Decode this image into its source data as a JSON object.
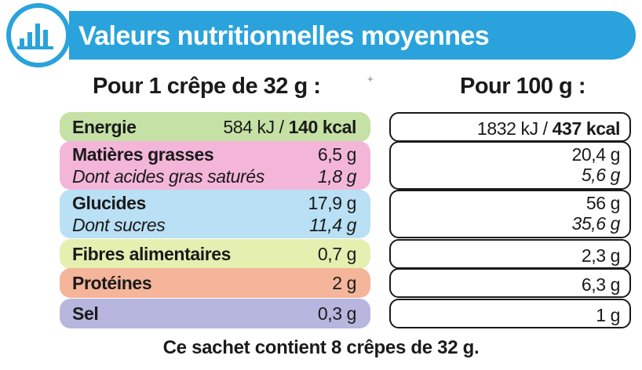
{
  "header": {
    "title": "Valeurs nutritionnelles moyennes",
    "icon": "bar-chart-icon",
    "color": "#2aa3dc"
  },
  "columns": {
    "per_crepe": "Pour 1 crêpe de 32 g :",
    "per_100g": "Pour 100 g :"
  },
  "rows": [
    {
      "label": "Energie",
      "per_crepe_kj": "584 kJ / ",
      "per_crepe_kcal": "140 kcal",
      "per_100g_kj": "1832 kJ / ",
      "per_100g_kcal": "437 kcal",
      "color": "#c5e1a5"
    },
    {
      "label": "Matières grasses",
      "per_crepe": "6,5 g",
      "per_100g": "20,4 g",
      "sub_label": "Dont acides gras saturés",
      "sub_per_crepe": "1,8 g",
      "sub_per_100g": "5,6 g",
      "color": "#f3b6d9"
    },
    {
      "label": "Glucides",
      "per_crepe": "17,9 g",
      "per_100g": "56 g",
      "sub_label": "Dont sucres",
      "sub_per_crepe": "11,4 g",
      "sub_per_100g": "35,6 g",
      "color": "#b9e0f4"
    },
    {
      "label": "Fibres alimentaires",
      "per_crepe": "0,7 g",
      "per_100g": "2,3 g",
      "color": "#e5efb0"
    },
    {
      "label": "Protéines",
      "per_crepe": "2 g",
      "per_100g": "6,3 g",
      "color": "#f4b59a"
    },
    {
      "label": "Sel",
      "per_crepe": "0,3 g",
      "per_100g": "1 g",
      "color": "#b7b6de"
    }
  ],
  "footer": "Ce sachet contient 8 crêpes de 32 g."
}
